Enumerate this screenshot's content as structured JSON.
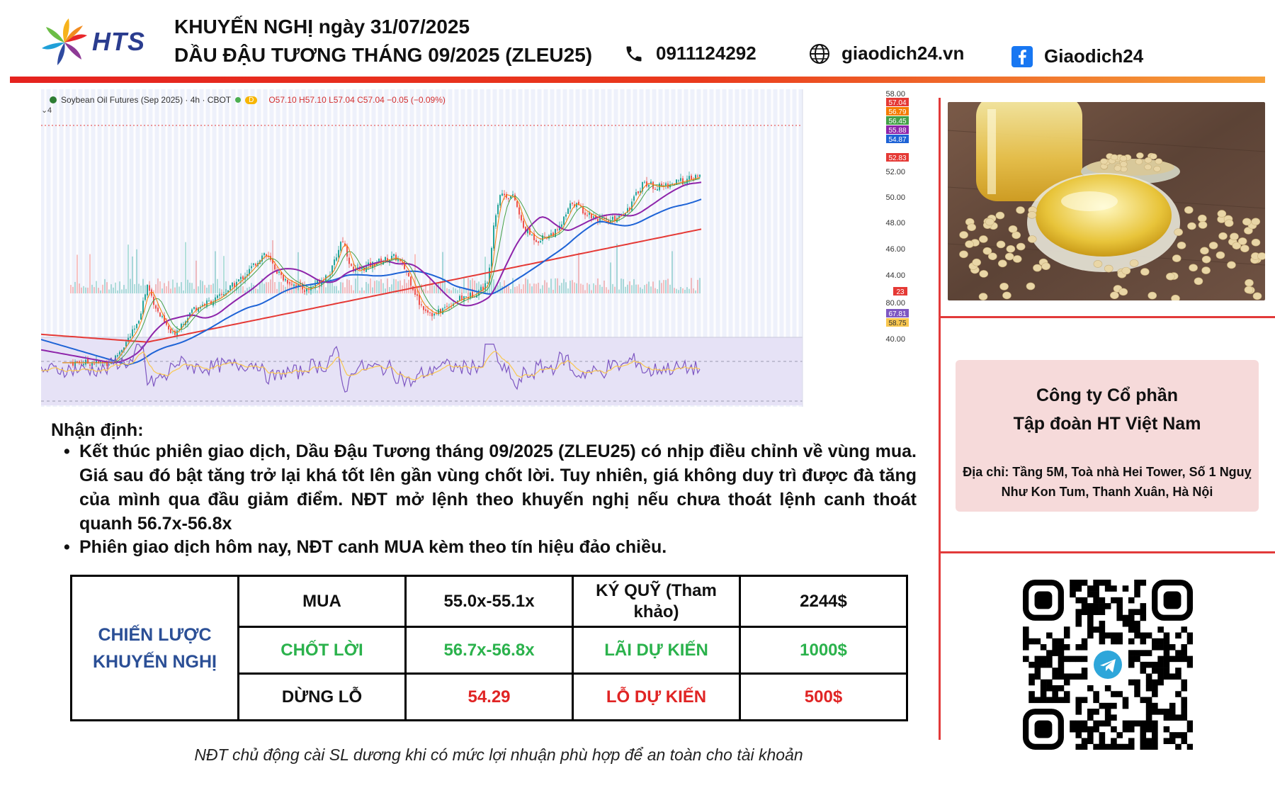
{
  "header": {
    "brand": "HTS",
    "line1": "KHUYẾN NGHỊ ngày 31/07/2025",
    "line2": "DẦU ĐẬU TƯƠNG THÁNG 09/2025 (ZLEU25)",
    "phone": "0911124292",
    "website": "giaodich24.vn",
    "facebook": "Giaodich24"
  },
  "chart": {
    "legend": "Soybean Oil Futures (Sep 2025) · 4h · CBOT",
    "ohlc": "O57.10 H57.10 L57.04 C57.04 −0.05 (−0.09%)",
    "interval_badge": "D",
    "pane_badge": "4",
    "price_ticks": [
      "58.00",
      "52.00",
      "50.00",
      "48.00",
      "46.00",
      "44.00"
    ],
    "price_tags": [
      {
        "label": "57.04",
        "color": "#e53935"
      },
      {
        "label": "56.79",
        "color": "#f57c00"
      },
      {
        "label": "56.45",
        "color": "#43a047"
      },
      {
        "label": "55.88",
        "color": "#8e24aa"
      },
      {
        "label": "54.87",
        "color": "#1e63d6"
      },
      {
        "label": "52.83",
        "color": "#e53935"
      }
    ],
    "volume_tag": "23",
    "rsi_ticks": [
      "80.00",
      "40.00"
    ],
    "rsi_tags": [
      {
        "label": "67.81",
        "color": "#7e57c2"
      },
      {
        "label": "58.75",
        "color": "#f9c74f"
      }
    ]
  },
  "analysis": {
    "heading": "Nhận định:",
    "bullets": [
      "Kết thúc phiên giao dịch, Dầu Đậu Tương tháng 09/2025 (ZLEU25) có nhịp điều chỉnh về vùng mua. Giá sau đó bật tăng trở lại khá tốt lên gần vùng chốt lời. Tuy nhiên, giá không duy trì được đà tăng của mình qua đầu giảm điểm. NĐT mở lệnh theo khuyến nghị nếu chưa thoát lệnh canh thoát quanh 56.7x-56.8x",
      "Phiên giao dịch hôm nay, NĐT canh MUA kèm theo tín hiệu đảo chiều."
    ]
  },
  "strategy": {
    "head": "CHIẾN LƯỢC KHUYẾN NGHỊ",
    "rows": [
      {
        "action": "MUA",
        "range": "55.0x-55.1x",
        "metric": "KÝ QUỸ (Tham khảo)",
        "amount": "2244$"
      },
      {
        "action": "CHỐT LỜI",
        "range": "56.7x-56.8x",
        "metric": "LÃI DỰ KIẾN",
        "amount": "1000$"
      },
      {
        "action": "DỪNG LỖ",
        "range": "54.29",
        "metric": "LỖ DỰ KIẾN",
        "amount": "500$"
      }
    ]
  },
  "company": {
    "name_line1": "Công ty Cổ phần",
    "name_line2": "Tập đoàn HT Việt Nam",
    "address": "Địa chỉ: Tầng 5M, Toà nhà Hei Tower, Số 1 Nguỵ Như Kon Tum, Thanh Xuân, Hà Nội"
  },
  "footnote": "NĐT chủ động cài SL dương khi có mức lợi nhuận phù hợp để an toàn cho tài khoản",
  "icons": {
    "phone": "phone-icon",
    "web": "globe-icon",
    "fb": "facebook-icon",
    "qr": "telegram-qr-icon"
  },
  "colors": {
    "accent_red": "#e23a3a",
    "strategy_blue": "#2b4f96",
    "green": "#2bb24c",
    "red": "#e02424",
    "company_bg": "#f6dada"
  }
}
